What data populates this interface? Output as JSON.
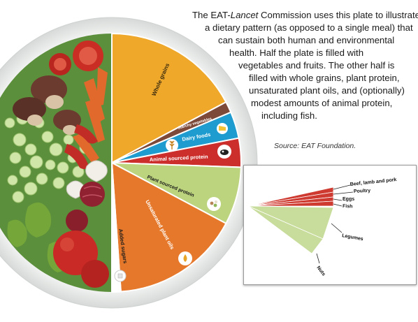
{
  "caption": {
    "line1_pre": "The EAT-",
    "line1_em": "Lancet",
    "line1_post": " Commission uses this plate to illustrate",
    "line2": "a dietary pattern (as opposed to a single meal) that",
    "line3": "can sustain both human and environmental",
    "line4": "health. Half the plate is filled with",
    "line5": "vegetables and fruits. The other half is",
    "line6": "filled with whole grains, plant protein,",
    "line7": "unsaturated plant oils, and (optionally)",
    "line8": "modest amounts of animal protein,",
    "line9": "including fish."
  },
  "source": "Source: EAT Foundation.",
  "plate": {
    "segments": [
      {
        "label": "Whole grains",
        "color": "#efa82a"
      },
      {
        "label": "Starchy vegetables",
        "color": "#7d4a39"
      },
      {
        "label": "Dairy foods",
        "color": "#1f9ccf"
      },
      {
        "label": "Animal sourced protein",
        "color": "#cc2f2b"
      },
      {
        "label": "Plant sourced protein",
        "color": "#bcd47d"
      },
      {
        "label": "Unsaturated plant oils",
        "color": "#e5782a"
      },
      {
        "label": "Added sugars",
        "color": "#ffffff"
      }
    ],
    "veg_color": "#5c8f3b",
    "rim_color": "#eceeed"
  },
  "inset": {
    "labels": {
      "beef": "Beef, lamb and pork",
      "poultry": "Poultry",
      "eggs": "Eggs",
      "fish": "Fish",
      "legumes": "Legumes",
      "nuts": "Nuts"
    },
    "colors": {
      "red": "#cf3a30",
      "green": "#c8dc9b"
    }
  }
}
